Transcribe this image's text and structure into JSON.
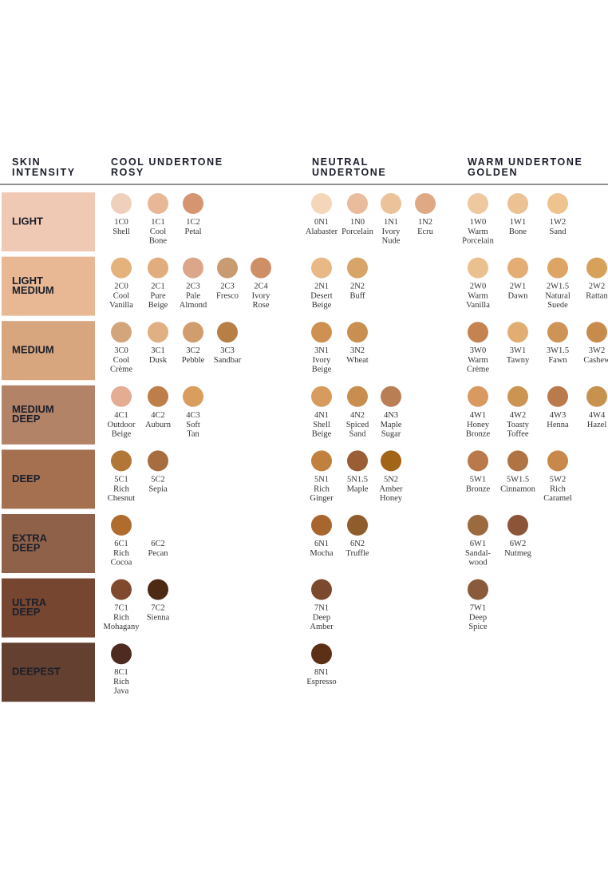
{
  "header": {
    "col0": [
      "SKIN",
      "INTENSITY"
    ],
    "col1": [
      "COOL UNDERTONE",
      "ROSY"
    ],
    "col2": [
      "NEUTRAL",
      "UNDERTONE"
    ],
    "col3": [
      "WARM UNDERTONE",
      "GOLDEN"
    ]
  },
  "rows": [
    {
      "label": [
        "LIGHT"
      ],
      "color": "#f0c9b4",
      "groups": [
        [
          {
            "code": "1C0",
            "lines": [
              "Shell"
            ],
            "color": "#efd0bd"
          },
          {
            "code": "1C1",
            "lines": [
              "Cool",
              "Bone"
            ],
            "color": "#e8b896"
          },
          {
            "code": "1C2",
            "lines": [
              "Petal"
            ],
            "color": "#d49570"
          }
        ],
        [
          {
            "code": "0N1",
            "lines": [
              "Alabaster"
            ],
            "color": "#f3d7b8"
          },
          {
            "code": "1N0",
            "lines": [
              "Porcelain"
            ],
            "color": "#e8bc9c"
          },
          {
            "code": "1N1",
            "lines": [
              "Ivory",
              "Nude"
            ],
            "color": "#ecc29b"
          },
          {
            "code": "1N2",
            "lines": [
              "Ecru"
            ],
            "color": "#e0a986"
          }
        ],
        [
          {
            "code": "1W0",
            "lines": [
              "Warm",
              "Porcelain"
            ],
            "color": "#eec89f"
          },
          {
            "code": "1W1",
            "lines": [
              "Bone"
            ],
            "color": "#ecc193"
          },
          {
            "code": "1W2",
            "lines": [
              "Sand"
            ],
            "color": "#eec38f"
          }
        ]
      ]
    },
    {
      "label": [
        "LIGHT",
        "MEDIUM"
      ],
      "color": "#e7b893",
      "groups": [
        [
          {
            "code": "2C0",
            "lines": [
              "Cool",
              "Vanilla"
            ],
            "color": "#e4b27c"
          },
          {
            "code": "2C1",
            "lines": [
              "Pure",
              "Beige"
            ],
            "color": "#e1ad7c"
          },
          {
            "code": "2C3",
            "lines": [
              "Pale",
              "Almond"
            ],
            "color": "#dba68a"
          },
          {
            "code": "2C3",
            "lines": [
              "Fresco"
            ],
            "color": "#c99b72"
          },
          {
            "code": "2C4",
            "lines": [
              "Ivory",
              "Rose"
            ],
            "color": "#cf8f66"
          }
        ],
        [
          {
            "code": "2N1",
            "lines": [
              "Desert",
              "Beige"
            ],
            "color": "#e9b887"
          },
          {
            "code": "2N2",
            "lines": [
              "Buff"
            ],
            "color": "#d8a46a"
          }
        ],
        [
          {
            "code": "2W0",
            "lines": [
              "Warm",
              "Vanilla"
            ],
            "color": "#eac18e"
          },
          {
            "code": "2W1",
            "lines": [
              "Dawn"
            ],
            "color": "#e3ad73"
          },
          {
            "code": "2W1.5",
            "lines": [
              "Natural",
              "Suede"
            ],
            "color": "#dca566"
          },
          {
            "code": "2W2",
            "lines": [
              "Rattan"
            ],
            "color": "#d7a15c"
          }
        ]
      ]
    },
    {
      "label": [
        "MEDIUM"
      ],
      "color": "#d7a57e",
      "groups": [
        [
          {
            "code": "3C0",
            "lines": [
              "Cool",
              "Crème"
            ],
            "color": "#d2a57c"
          },
          {
            "code": "3C1",
            "lines": [
              "Dusk"
            ],
            "color": "#e0b083"
          },
          {
            "code": "3C2",
            "lines": [
              "Pebble"
            ],
            "color": "#d19d6f"
          },
          {
            "code": "3C3",
            "lines": [
              "Sandbar"
            ],
            "color": "#b77e46"
          }
        ],
        [
          {
            "code": "3N1",
            "lines": [
              "Ivory",
              "Beige"
            ],
            "color": "#cf9152"
          },
          {
            "code": "3N2",
            "lines": [
              "Wheat"
            ],
            "color": "#c98f51"
          }
        ],
        [
          {
            "code": "3W0",
            "lines": [
              "Warm",
              "Crème"
            ],
            "color": "#c58350"
          },
          {
            "code": "3W1",
            "lines": [
              "Tawny"
            ],
            "color": "#e2ad72"
          },
          {
            "code": "3W1.5",
            "lines": [
              "Fawn"
            ],
            "color": "#ce9357"
          },
          {
            "code": "3W2",
            "lines": [
              "Cashew"
            ],
            "color": "#c78b4e"
          }
        ]
      ]
    },
    {
      "label": [
        "MEDIUM",
        "DEEP"
      ],
      "color": "#b38368",
      "groups": [
        [
          {
            "code": "4C1",
            "lines": [
              "Outdoor",
              "Beige"
            ],
            "color": "#e4ac92"
          },
          {
            "code": "4C2",
            "lines": [
              "Auburn"
            ],
            "color": "#bd7e4a"
          },
          {
            "code": "4C3",
            "lines": [
              "Soft",
              "Tan"
            ],
            "color": "#d99d5e"
          }
        ],
        [
          {
            "code": "4N1",
            "lines": [
              "Shell",
              "Beige"
            ],
            "color": "#d79b5e"
          },
          {
            "code": "4N2",
            "lines": [
              "Spiced",
              "Sand"
            ],
            "color": "#c98d4f"
          },
          {
            "code": "4N3",
            "lines": [
              "Maple",
              "Sugar"
            ],
            "color": "#b97e54"
          }
        ],
        [
          {
            "code": "4W1",
            "lines": [
              "Honey",
              "Bronze"
            ],
            "color": "#d99a62"
          },
          {
            "code": "4W2",
            "lines": [
              "Toasty",
              "Toffee"
            ],
            "color": "#cc9451"
          },
          {
            "code": "4W3",
            "lines": [
              "Henna"
            ],
            "color": "#b97a4c"
          },
          {
            "code": "4W4",
            "lines": [
              "Hazel"
            ],
            "color": "#c79250"
          }
        ]
      ]
    },
    {
      "label": [
        "DEEP"
      ],
      "color": "#a57050",
      "groups": [
        [
          {
            "code": "5C1",
            "lines": [
              "Rich",
              "Chesnut"
            ],
            "color": "#b27637"
          },
          {
            "code": "5C2",
            "lines": [
              "Sepia"
            ],
            "color": "#a86d3f"
          }
        ],
        [
          {
            "code": "5N1",
            "lines": [
              "Rich",
              "Ginger"
            ],
            "color": "#c1803e"
          },
          {
            "code": "5N1.5",
            "lines": [
              "Maple"
            ],
            "color": "#9a5d35"
          },
          {
            "code": "5N2",
            "lines": [
              "Amber",
              "Honey"
            ],
            "color": "#a26416"
          }
        ],
        [
          {
            "code": "5W1",
            "lines": [
              "Bronze"
            ],
            "color": "#b9794a"
          },
          {
            "code": "5W1.5",
            "lines": [
              "Cinnamon"
            ],
            "color": "#b07343"
          },
          {
            "code": "5W2",
            "lines": [
              "Rich",
              "Caramel"
            ],
            "color": "#c8884a"
          }
        ]
      ]
    },
    {
      "label": [
        "EXTRA",
        "DEEP"
      ],
      "color": "#8f6149",
      "groups": [
        [
          {
            "code": "6C1",
            "lines": [
              "Rich",
              "Cocoa"
            ],
            "color": "#b06c2c"
          },
          {
            "code": "6C2",
            "lines": [
              "Pecan"
            ]
          }
        ],
        [
          {
            "code": "6N1",
            "lines": [
              "Mocha"
            ],
            "color": "#a8662e"
          },
          {
            "code": "6N2",
            "lines": [
              "Truffle"
            ],
            "color": "#8e5d2b"
          }
        ],
        [
          {
            "code": "6W1",
            "lines": [
              "Sandal-",
              "wood"
            ],
            "color": "#9b6a3f"
          },
          {
            "code": "6W2",
            "lines": [
              "Nutmeg"
            ],
            "color": "#8c5539"
          }
        ]
      ]
    },
    {
      "label": [
        "ULTRA",
        "DEEP"
      ],
      "color": "#774630",
      "groups": [
        [
          {
            "code": "7C1",
            "lines": [
              "Rich",
              "Mohagany"
            ],
            "color": "#804a2e"
          },
          {
            "code": "7C2",
            "lines": [
              "Sienna"
            ],
            "color": "#4c2a14"
          }
        ],
        [
          {
            "code": "7N1",
            "lines": [
              "Deep",
              "Amber"
            ],
            "color": "#7b4a2e"
          }
        ],
        [
          {
            "code": "7W1",
            "lines": [
              "Deep",
              "Spice"
            ],
            "color": "#8a5a3c"
          }
        ]
      ]
    },
    {
      "label": [
        "DEEPEST"
      ],
      "color": "#63402f",
      "groups": [
        [
          {
            "code": "8C1",
            "lines": [
              "Rich",
              "Java"
            ],
            "color": "#4e2b20"
          }
        ],
        [
          {
            "code": "8N1",
            "lines": [
              "Espresso"
            ],
            "color": "#5b3017"
          }
        ],
        []
      ]
    }
  ]
}
